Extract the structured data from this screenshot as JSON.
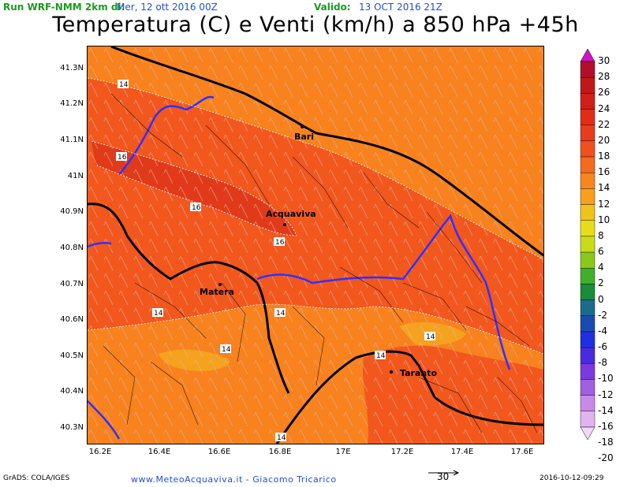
{
  "header": {
    "run_label": "Run WRF-NMM 2km di:",
    "run_date": "Mer, 12 ott 2016 00Z",
    "valid_label": "Valido:",
    "valid_date": "13 OCT 2016 21Z"
  },
  "title": "Temperatura (C) e Venti (km/h) a 850 hPa +45h",
  "map": {
    "lat_ticks": [
      "41.3N",
      "41.2N",
      "41.1N",
      "41N",
      "40.9N",
      "40.8N",
      "40.7N",
      "40.6N",
      "40.5N",
      "40.4N",
      "40.3N"
    ],
    "lon_ticks": [
      "16.2E",
      "16.4E",
      "16.6E",
      "16.8E",
      "17E",
      "17.2E",
      "17.4E",
      "17.6E"
    ],
    "places": [
      "Bari",
      "Acquaviva",
      "Matera",
      "Taranto"
    ],
    "contour_labels": [
      "14",
      "16",
      "16",
      "16",
      "14",
      "14",
      "14",
      "14",
      "14",
      "14"
    ],
    "colors": {
      "t16_18": "#e03a1a",
      "t14_16": "#f2571e",
      "t12_14": "#f7821e",
      "t10_12": "#f5a21e",
      "province_border": "#3030ff"
    }
  },
  "colorbar": {
    "levels": [
      "30",
      "28",
      "26",
      "24",
      "22",
      "20",
      "18",
      "16",
      "14",
      "12",
      "10",
      "8",
      "6",
      "4",
      "2",
      "0",
      "-2",
      "-4",
      "-6",
      "-8",
      "-10",
      "-12",
      "-14",
      "-16",
      "-18",
      "-20"
    ],
    "colors": [
      "#d015c0",
      "#b0102a",
      "#c01818",
      "#d02018",
      "#e02c18",
      "#e83c1c",
      "#f0501e",
      "#f46a1e",
      "#f7861e",
      "#f8a01e",
      "#f0c21c",
      "#e8dc1a",
      "#c8dc1a",
      "#8cc81a",
      "#40b02a",
      "#1a8c3a",
      "#1a6c8c",
      "#1a4cb0",
      "#2030e0",
      "#4a2ae0",
      "#7a3ae0",
      "#a060e0",
      "#c88ae8",
      "#e0b4f0",
      "#f0d8f8"
    ]
  },
  "footer": {
    "grads": "GrADS: COLA/IGES",
    "credit": "www.MeteoAcquaviva.it - Giacomo Tricarico",
    "wind_ref": "30",
    "timestamp": "2016-10-12-09:29"
  }
}
